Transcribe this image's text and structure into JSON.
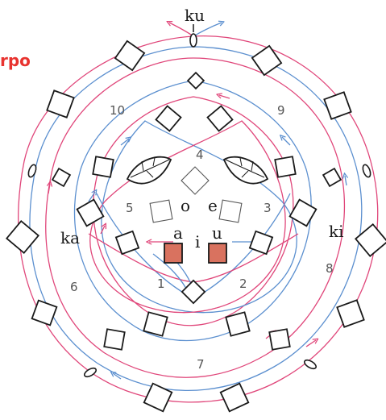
{
  "labels": {
    "top": "ku",
    "left": "ka",
    "right": "ki",
    "vowel_a": "a",
    "vowel_i": "i",
    "vowel_u": "u",
    "vowel_o": "o",
    "vowel_e": "e",
    "fragment": "rpo"
  },
  "regions": [
    "1",
    "2",
    "3",
    "4",
    "5",
    "6",
    "7",
    "8",
    "9",
    "10"
  ],
  "colors": {
    "blue_line": "#5b8fcf",
    "pink_line": "#e0467a",
    "highlight_square": "#d9725f",
    "fragment_text": "#e8332f"
  }
}
